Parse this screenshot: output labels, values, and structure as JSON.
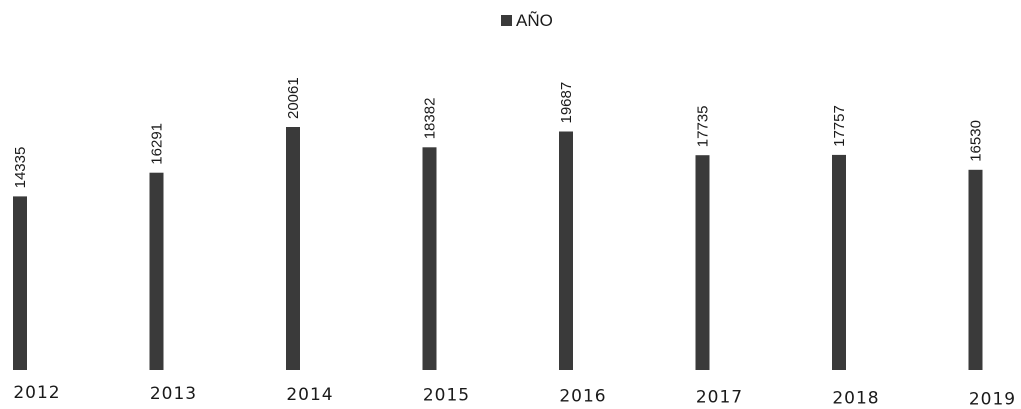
{
  "chart_data": {
    "type": "bar",
    "categories": [
      "2012",
      "2013",
      "2014",
      "2015",
      "2016",
      "2017",
      "2018",
      "2019"
    ],
    "series": [
      {
        "name": "AÑO",
        "values": [
          14335,
          16291,
          20061,
          18382,
          19687,
          17735,
          17757,
          16530
        ]
      }
    ],
    "data_labels": [
      "14335",
      "16291",
      "20061",
      "18382",
      "19687",
      "17735",
      "17757",
      "16530"
    ],
    "title": "",
    "xlabel": "",
    "ylabel": "",
    "ylim": [
      0,
      20061
    ],
    "grid": false,
    "legend_position": "top-center",
    "bar_color": "#3a3a3a"
  }
}
